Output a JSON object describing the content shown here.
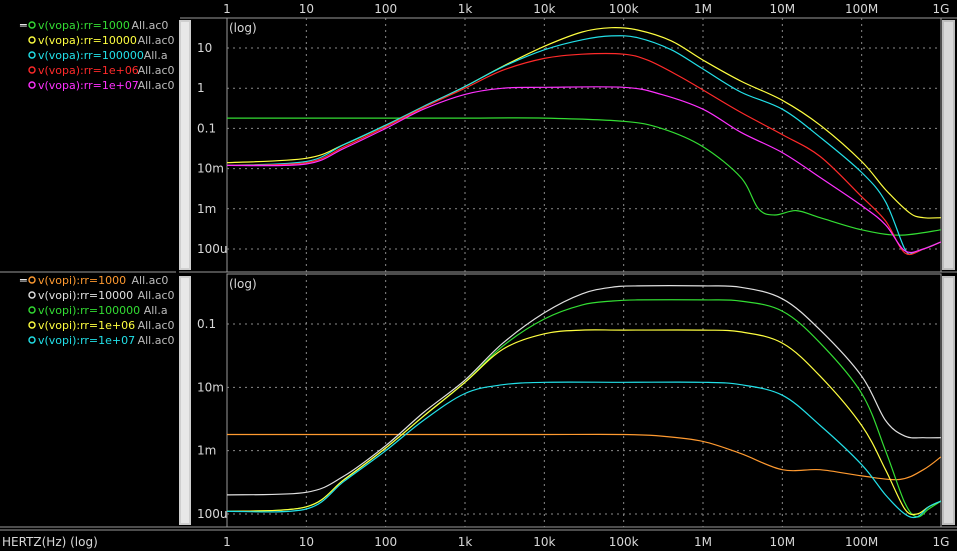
{
  "x_axis_label": "HERTZ(Hz) (log)",
  "panel_tag": "(log)",
  "x_ticks": [
    "1",
    "10",
    "100",
    "1k",
    "10k",
    "100k",
    "1M",
    "10M",
    "100M",
    "1G"
  ],
  "panels": [
    {
      "legend": [
        {
          "text": "v(vopa):rr=1000",
          "run": "All.ac0",
          "color": "#33dd33"
        },
        {
          "text": "v(vopa):rr=10000",
          "run": "All.ac0",
          "color": "#ffff40"
        },
        {
          "text": "v(vopa):rr=100000",
          "run": "All.a",
          "color": "#22e0e8"
        },
        {
          "text": "v(vopa):rr=1e+06",
          "run": "All.ac0",
          "color": "#ff2a2a"
        },
        {
          "text": "v(vopa):rr=1e+07",
          "run": "All.ac0",
          "color": "#ff30ff"
        }
      ],
      "y_ticks": [
        "10",
        "1",
        "0.1",
        "10m",
        "1m",
        "100u"
      ]
    },
    {
      "legend": [
        {
          "text": "v(vopi):rr=1000",
          "run": "All.ac0",
          "color": "#ff9a30"
        },
        {
          "text": "v(vopi):rr=10000",
          "run": "All.ac0",
          "color": "#e0e0e0"
        },
        {
          "text": "v(vopi):rr=100000",
          "run": "All.a",
          "color": "#33dd33"
        },
        {
          "text": "v(vopi):rr=1e+06",
          "run": "All.ac0",
          "color": "#ffff40"
        },
        {
          "text": "v(vopi):rr=1e+07",
          "run": "All.ac0",
          "color": "#22e0e8"
        }
      ],
      "y_ticks": [
        "0.1",
        "10m",
        "1m",
        "100u"
      ]
    }
  ],
  "chart_data": [
    {
      "type": "line",
      "x_scale": "log",
      "y_scale": "log",
      "x_unit": "Hz",
      "xlim": [
        1,
        1000000000.0
      ],
      "ylim": [
        5e-05,
        50
      ],
      "grid": true,
      "legend_placement": "left",
      "series": [
        {
          "name": "v(vopa):rr=1000",
          "color": "#33dd33",
          "points": [
            [
              1,
              0.18
            ],
            [
              10,
              0.18
            ],
            [
              100,
              0.18
            ],
            [
              1000,
              0.18
            ],
            [
              10000,
              0.18
            ],
            [
              100000,
              0.15
            ],
            [
              300000,
              0.1
            ],
            [
              1000000,
              0.035
            ],
            [
              3000000,
              0.006
            ],
            [
              5000000,
              0.001
            ],
            [
              8000000,
              0.0007
            ],
            [
              15000000,
              0.0009
            ],
            [
              30000000,
              0.0006
            ],
            [
              100000000,
              0.0003
            ],
            [
              300000000,
              0.00022
            ],
            [
              1000000000,
              0.0003
            ]
          ]
        },
        {
          "name": "v(vopa):rr=10000",
          "color": "#ffff40",
          "points": [
            [
              1,
              0.014
            ],
            [
              10,
              0.018
            ],
            [
              30,
              0.04
            ],
            [
              100,
              0.12
            ],
            [
              300,
              0.35
            ],
            [
              1000,
              1.1
            ],
            [
              3000,
              3.5
            ],
            [
              10000,
              11
            ],
            [
              30000,
              25
            ],
            [
              70000,
              32
            ],
            [
              150000,
              28
            ],
            [
              400000,
              15
            ],
            [
              1000000,
              5
            ],
            [
              3000000,
              1.5
            ],
            [
              10000000,
              0.5
            ],
            [
              30000000,
              0.12
            ],
            [
              100000000,
              0.015
            ],
            [
              200000000,
              0.003
            ],
            [
              400000000,
              0.0008
            ],
            [
              600000000,
              0.0006
            ],
            [
              1000000000,
              0.0006
            ]
          ]
        },
        {
          "name": "v(vopa):rr=100000",
          "color": "#22e0e8",
          "points": [
            [
              1,
              0.012
            ],
            [
              10,
              0.015
            ],
            [
              30,
              0.04
            ],
            [
              100,
              0.12
            ],
            [
              300,
              0.35
            ],
            [
              1000,
              1.1
            ],
            [
              3000,
              3.4
            ],
            [
              10000,
              9
            ],
            [
              30000,
              16
            ],
            [
              70000,
              20
            ],
            [
              150000,
              18
            ],
            [
              400000,
              9
            ],
            [
              1000000,
              3
            ],
            [
              3000000,
              0.8
            ],
            [
              10000000,
              0.3
            ],
            [
              30000000,
              0.06
            ],
            [
              100000000,
              0.008
            ],
            [
              200000000,
              0.0015
            ],
            [
              350000000,
              0.0001
            ],
            [
              450000000,
              8e-05
            ],
            [
              600000000,
              0.0001
            ],
            [
              1000000000,
              0.00015
            ]
          ]
        },
        {
          "name": "v(vopa):rr=1e+06",
          "color": "#ff2a2a",
          "points": [
            [
              1,
              0.012
            ],
            [
              10,
              0.014
            ],
            [
              30,
              0.035
            ],
            [
              100,
              0.11
            ],
            [
              300,
              0.33
            ],
            [
              1000,
              1
            ],
            [
              3000,
              2.8
            ],
            [
              10000,
              5.5
            ],
            [
              30000,
              7
            ],
            [
              100000,
              7
            ],
            [
              200000,
              5
            ],
            [
              500000,
              2
            ],
            [
              1000000,
              0.9
            ],
            [
              3000000,
              0.25
            ],
            [
              10000000,
              0.07
            ],
            [
              30000000,
              0.02
            ],
            [
              100000000,
              0.002
            ],
            [
              200000000,
              0.0005
            ],
            [
              350000000,
              8e-05
            ],
            [
              600000000,
              0.0001
            ],
            [
              1000000000,
              0.00015
            ]
          ]
        },
        {
          "name": "v(vopa):rr=1e+07",
          "color": "#ff30ff",
          "points": [
            [
              1,
              0.012
            ],
            [
              10,
              0.013
            ],
            [
              30,
              0.032
            ],
            [
              100,
              0.1
            ],
            [
              300,
              0.3
            ],
            [
              1000,
              0.7
            ],
            [
              3000,
              1
            ],
            [
              10000,
              1.05
            ],
            [
              100000,
              1.05
            ],
            [
              300000,
              0.7
            ],
            [
              1000000,
              0.3
            ],
            [
              3000000,
              0.08
            ],
            [
              10000000,
              0.025
            ],
            [
              30000000,
              0.006
            ],
            [
              100000000,
              0.0012
            ],
            [
              200000000,
              0.0004
            ],
            [
              350000000,
              9e-05
            ],
            [
              600000000,
              0.0001
            ],
            [
              1000000000,
              0.00015
            ]
          ]
        }
      ]
    },
    {
      "type": "line",
      "x_scale": "log",
      "y_scale": "log",
      "x_unit": "Hz",
      "xlim": [
        1,
        1000000000.0
      ],
      "ylim": [
        8e-05,
        0.6
      ],
      "grid": true,
      "legend_placement": "left",
      "series": [
        {
          "name": "v(vopi):rr=1000",
          "color": "#ff9a30",
          "points": [
            [
              1,
              0.0018
            ],
            [
              10,
              0.0018
            ],
            [
              100,
              0.0018
            ],
            [
              1000,
              0.0018
            ],
            [
              10000,
              0.0018
            ],
            [
              100000,
              0.0018
            ],
            [
              300000,
              0.0017
            ],
            [
              1000000,
              0.0014
            ],
            [
              3000000,
              0.0009
            ],
            [
              10000000,
              0.0005
            ],
            [
              30000000,
              0.0005
            ],
            [
              100000000,
              0.0004
            ],
            [
              300000000,
              0.00035
            ],
            [
              600000000,
              0.0005
            ],
            [
              1000000000,
              0.0008
            ]
          ]
        },
        {
          "name": "v(vopi):rr=10000",
          "color": "#e0e0e0",
          "points": [
            [
              1,
              0.0002
            ],
            [
              10,
              0.00022
            ],
            [
              30,
              0.0004
            ],
            [
              100,
              0.0012
            ],
            [
              300,
              0.004
            ],
            [
              1000,
              0.013
            ],
            [
              3000,
              0.05
            ],
            [
              10000,
              0.15
            ],
            [
              30000,
              0.3
            ],
            [
              70000,
              0.38
            ],
            [
              150000,
              0.4
            ],
            [
              1000000,
              0.4
            ],
            [
              3000000,
              0.38
            ],
            [
              10000000,
              0.25
            ],
            [
              30000000,
              0.08
            ],
            [
              100000000,
              0.015
            ],
            [
              200000000,
              0.003
            ],
            [
              350000000,
              0.0017
            ],
            [
              600000000,
              0.0016
            ],
            [
              1000000000,
              0.0016
            ]
          ]
        },
        {
          "name": "v(vopi):rr=100000",
          "color": "#33dd33",
          "points": [
            [
              1,
              0.00011
            ],
            [
              10,
              0.00013
            ],
            [
              30,
              0.00035
            ],
            [
              100,
              0.0011
            ],
            [
              300,
              0.0035
            ],
            [
              1000,
              0.012
            ],
            [
              3000,
              0.045
            ],
            [
              10000,
              0.12
            ],
            [
              30000,
              0.2
            ],
            [
              70000,
              0.23
            ],
            [
              150000,
              0.24
            ],
            [
              1000000,
              0.24
            ],
            [
              3000000,
              0.23
            ],
            [
              10000000,
              0.16
            ],
            [
              30000000,
              0.05
            ],
            [
              100000000,
              0.008
            ],
            [
              200000000,
              0.001
            ],
            [
              350000000,
              0.00015
            ],
            [
              500000000,
              9e-05
            ],
            [
              700000000,
              0.00012
            ],
            [
              1000000000,
              0.00016
            ]
          ]
        },
        {
          "name": "v(vopi):rr=1e+06",
          "color": "#ffff40",
          "points": [
            [
              1,
              0.00011
            ],
            [
              10,
              0.00013
            ],
            [
              30,
              0.00035
            ],
            [
              100,
              0.0011
            ],
            [
              300,
              0.0035
            ],
            [
              1000,
              0.012
            ],
            [
              3000,
              0.04
            ],
            [
              10000,
              0.07
            ],
            [
              30000,
              0.08
            ],
            [
              100000,
              0.08
            ],
            [
              1000000,
              0.08
            ],
            [
              3000000,
              0.075
            ],
            [
              10000000,
              0.05
            ],
            [
              30000000,
              0.015
            ],
            [
              100000000,
              0.0025
            ],
            [
              200000000,
              0.0005
            ],
            [
              350000000,
              0.00012
            ],
            [
              500000000,
              0.0001
            ],
            [
              700000000,
              0.00013
            ],
            [
              1000000000,
              0.00016
            ]
          ]
        },
        {
          "name": "v(vopi):rr=1e+07",
          "color": "#22e0e8",
          "points": [
            [
              1,
              0.00011
            ],
            [
              10,
              0.00012
            ],
            [
              30,
              0.00033
            ],
            [
              100,
              0.001
            ],
            [
              300,
              0.003
            ],
            [
              1000,
              0.008
            ],
            [
              3000,
              0.011
            ],
            [
              10000,
              0.012
            ],
            [
              100000,
              0.012
            ],
            [
              1000000,
              0.012
            ],
            [
              3000000,
              0.011
            ],
            [
              10000000,
              0.0075
            ],
            [
              30000000,
              0.0025
            ],
            [
              100000000,
              0.0006
            ],
            [
              200000000,
              0.0002
            ],
            [
              350000000,
              0.0001
            ],
            [
              500000000,
              9e-05
            ],
            [
              700000000,
              0.00013
            ],
            [
              1000000000,
              0.00016
            ]
          ]
        }
      ]
    }
  ]
}
